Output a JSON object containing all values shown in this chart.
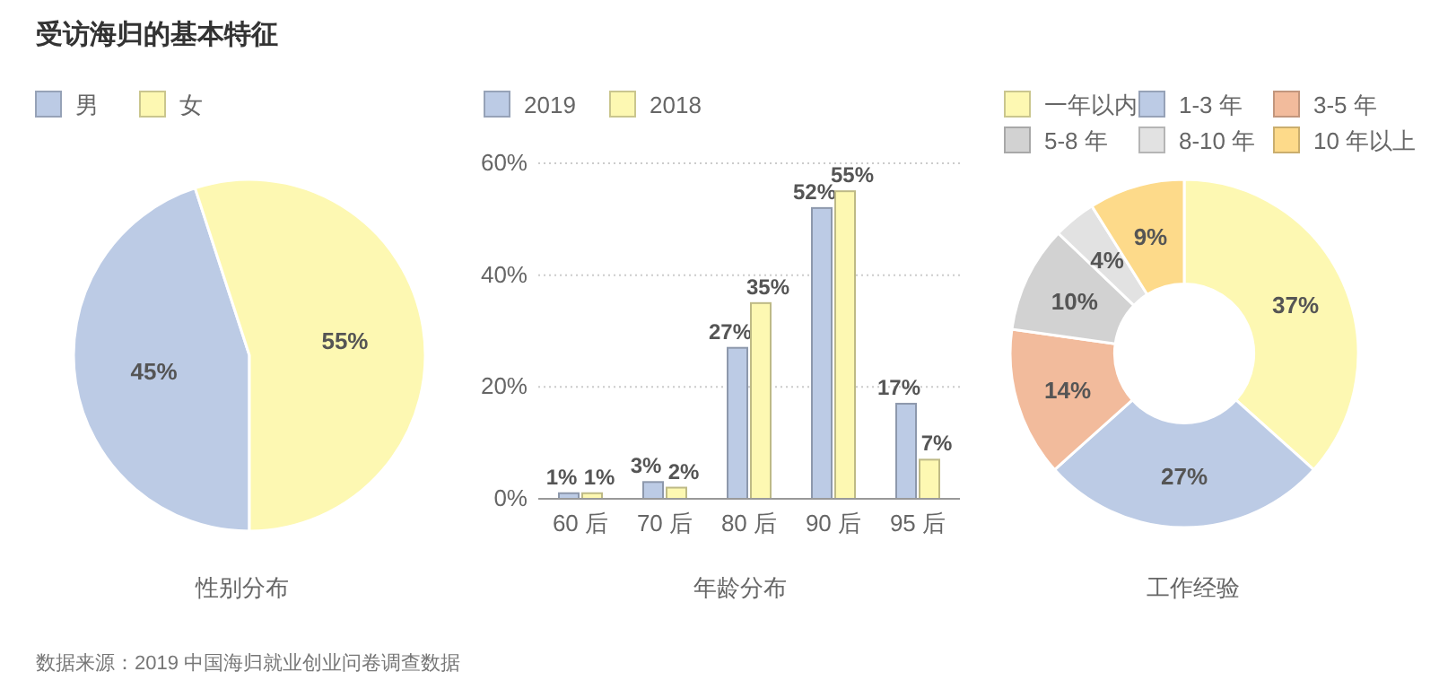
{
  "chart_data": [
    {
      "type": "pie",
      "title": "受访海归的基本特征",
      "xlabel": "性别分布",
      "annotations": [
        "数据来源：2019 中国海归就业创业问卷调查数据"
      ],
      "categories": [
        "男",
        "女"
      ],
      "values": [
        45,
        55
      ],
      "colors": [
        "#bccbe5",
        "#fdf8b2"
      ],
      "value_labels": [
        "45%",
        "55%"
      ],
      "legend": "top left"
    },
    {
      "type": "bar",
      "xlabel": "年龄分布",
      "categories": [
        "60 后",
        "70 后",
        "80 后",
        "90 后",
        "95 后"
      ],
      "series": [
        {
          "name": "2019",
          "color": "#bccbe5",
          "values": [
            1,
            3,
            27,
            52,
            17
          ],
          "value_labels": [
            "1%",
            "3%",
            "27%",
            "52%",
            "17%"
          ]
        },
        {
          "name": "2018",
          "color": "#fdf8b2",
          "values": [
            1,
            2,
            35,
            55,
            7
          ],
          "value_labels": [
            "1%",
            "2%",
            "35%",
            "55%",
            "7%"
          ]
        }
      ],
      "ylim": [
        0,
        60
      ],
      "yticks": [
        {
          "value": 0,
          "label": "0%"
        },
        {
          "value": 20,
          "label": "20%"
        },
        {
          "value": 40,
          "label": "40%"
        },
        {
          "value": 60,
          "label": "60%"
        }
      ],
      "grid": "y",
      "legend": "top left"
    },
    {
      "type": "donut",
      "xlabel": "工作经验",
      "categories": [
        "一年以内",
        "1-3 年",
        "3-5 年",
        "5-8 年",
        "8-10 年",
        "10 年以上"
      ],
      "values": [
        37,
        27,
        14,
        10,
        4,
        9
      ],
      "colors": [
        "#fdf8b2",
        "#bccbe5",
        "#f2bb9c",
        "#d2d2d2",
        "#e2e2e2",
        "#fdda8a"
      ],
      "value_labels": [
        "37%",
        "27%",
        "14%",
        "10%",
        "4%",
        "9%"
      ],
      "legend": "top"
    }
  ]
}
